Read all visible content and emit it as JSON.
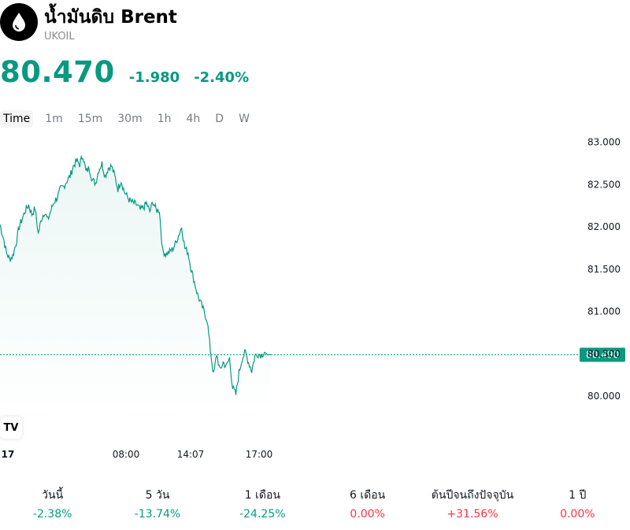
{
  "header": {
    "title": "น้ำมันดิบ Brent",
    "ticker": "UKOIL",
    "price": "80.470",
    "change": "-1.980",
    "change_pct": "-2.40%"
  },
  "timeframes": [
    "Time",
    "1m",
    "15m",
    "30m",
    "1h",
    "4h",
    "D",
    "W"
  ],
  "active_timeframe": "Time",
  "brand_mark": "TV",
  "colors": {
    "line": "#089981",
    "down": "#089981",
    "up": "#f23645",
    "last_price_bg": "#089981"
  },
  "chart_data": {
    "type": "area",
    "x_ticks": [
      "17",
      "08:00",
      "14:07",
      "17:00"
    ],
    "y_ticks": [
      "80.000",
      "80.500",
      "81.000",
      "81.500",
      "82.000",
      "82.500",
      "83.000"
    ],
    "ylim": [
      79.75,
      83.1
    ],
    "last_price_label": "80.490",
    "last_price": 80.49,
    "x": [
      0,
      1,
      2,
      3,
      4,
      5,
      6,
      7,
      8,
      9,
      10,
      11,
      12,
      13,
      14,
      15,
      16,
      17,
      18,
      19,
      20,
      21,
      22,
      23,
      24,
      25,
      26,
      27,
      28,
      29,
      30,
      31,
      32,
      33,
      34,
      35,
      36,
      37,
      38,
      39,
      40,
      41,
      42,
      43,
      44,
      45,
      46,
      47,
      48,
      49,
      50,
      51,
      52,
      53,
      54,
      55,
      56,
      57,
      58,
      59,
      60,
      61,
      62,
      63,
      64,
      65,
      66,
      67,
      68,
      69,
      70,
      71,
      72,
      73,
      74,
      75,
      76,
      77,
      78,
      79,
      80,
      81,
      82,
      83,
      84,
      85
    ],
    "values": [
      82.03,
      81.88,
      81.7,
      81.62,
      81.66,
      81.8,
      82.0,
      82.1,
      82.2,
      82.26,
      82.15,
      82.22,
      81.92,
      82.1,
      82.18,
      82.08,
      82.2,
      82.3,
      82.35,
      82.45,
      82.48,
      82.55,
      82.6,
      82.72,
      82.78,
      82.74,
      82.85,
      82.65,
      82.7,
      82.55,
      82.52,
      82.68,
      82.75,
      82.6,
      82.7,
      82.72,
      82.6,
      82.45,
      82.55,
      82.42,
      82.35,
      82.3,
      82.28,
      82.26,
      82.2,
      82.23,
      82.28,
      82.18,
      82.3,
      82.2,
      82.2,
      81.72,
      81.68,
      81.7,
      81.73,
      81.8,
      81.9,
      82.0,
      81.75,
      81.7,
      81.5,
      81.35,
      81.2,
      81.1,
      81.0,
      80.9,
      80.55,
      80.25,
      80.5,
      80.3,
      80.4,
      80.35,
      80.45,
      80.1,
      80.02,
      80.28,
      80.45,
      80.52,
      80.4,
      80.3,
      80.48,
      80.5,
      80.49,
      80.52,
      80.49,
      80.49
    ]
  },
  "performance": [
    {
      "label": "วันนี้",
      "value": "-2.38%",
      "color": "#089981"
    },
    {
      "label": "5 วัน",
      "value": "-13.74%",
      "color": "#089981"
    },
    {
      "label": "1 เดือน",
      "value": "-24.25%",
      "color": "#089981"
    },
    {
      "label": "6 เดือน",
      "value": "0.00%",
      "color": "#f23645"
    },
    {
      "label": "ต้นปีจนถึงปัจจุบัน",
      "value": "+31.56%",
      "color": "#f23645"
    },
    {
      "label": "1 ปี",
      "value": "0.00%",
      "color": "#f23645"
    }
  ]
}
